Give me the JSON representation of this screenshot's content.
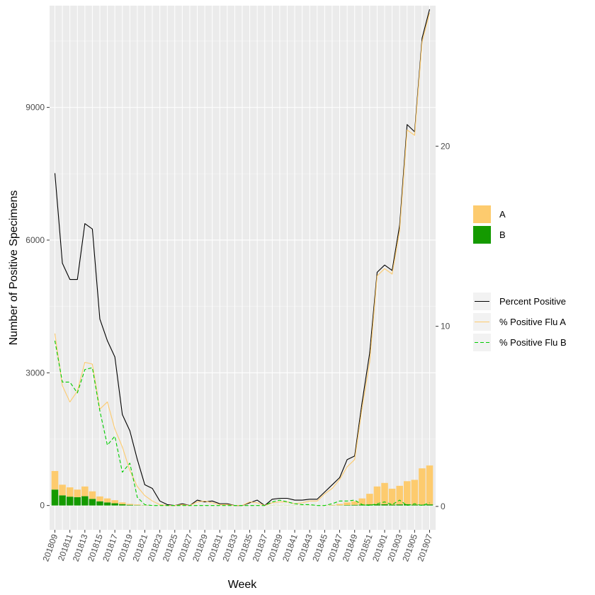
{
  "chart_data": {
    "type": "bar",
    "x_axis_title": "Week",
    "y_axis_title": "Number of Positive Specimens",
    "y_left_range": [
      -550,
      11300
    ],
    "y_left_ticks": [
      0,
      3000,
      6000,
      9000
    ],
    "y_right_range": [
      -1.3,
      27.8
    ],
    "y_right_ticks": [
      0,
      10,
      20
    ],
    "grid": true,
    "legend_position": "right",
    "categories": [
      "201809",
      "201810",
      "201811",
      "201812",
      "201813",
      "201814",
      "201815",
      "201816",
      "201817",
      "201818",
      "201819",
      "201820",
      "201821",
      "201822",
      "201823",
      "201824",
      "201825",
      "201826",
      "201827",
      "201828",
      "201829",
      "201830",
      "201831",
      "201832",
      "201833",
      "201834",
      "201835",
      "201836",
      "201837",
      "201838",
      "201839",
      "201840",
      "201841",
      "201842",
      "201843",
      "201844",
      "201845",
      "201846",
      "201847",
      "201848",
      "201849",
      "201850",
      "201851",
      "201852",
      "201901",
      "201902",
      "201903",
      "201904",
      "201905",
      "201906",
      "201907"
    ],
    "x_tick_labels": [
      "201809",
      "201811",
      "201813",
      "201815",
      "201817",
      "201819",
      "201821",
      "201823",
      "201825",
      "201827",
      "201829",
      "201831",
      "201833",
      "201835",
      "201837",
      "201839",
      "201841",
      "201843",
      "201845",
      "201847",
      "201849",
      "201851",
      "201901",
      "201903",
      "201905",
      "201907"
    ],
    "bar_series": [
      {
        "name": "A",
        "color": "#FDCB6E",
        "values": [
          420,
          240,
          210,
          170,
          220,
          170,
          110,
          90,
          70,
          40,
          20,
          15,
          5,
          3,
          2,
          2,
          2,
          2,
          2,
          2,
          2,
          2,
          2,
          2,
          2,
          2,
          2,
          2,
          2,
          2,
          2,
          2,
          2,
          2,
          2,
          2,
          5,
          10,
          30,
          60,
          80,
          140,
          240,
          400,
          480,
          360,
          420,
          520,
          560,
          820,
          880
        ]
      },
      {
        "name": "B",
        "color": "#149A00",
        "values": [
          360,
          230,
          200,
          190,
          210,
          150,
          95,
          70,
          50,
          30,
          15,
          8,
          5,
          2,
          2,
          2,
          2,
          2,
          2,
          2,
          2,
          2,
          2,
          2,
          2,
          2,
          2,
          2,
          2,
          2,
          2,
          2,
          2,
          2,
          2,
          2,
          2,
          3,
          5,
          10,
          15,
          20,
          25,
          30,
          30,
          20,
          25,
          30,
          20,
          20,
          25
        ]
      }
    ],
    "line_series": [
      {
        "name": "Percent Positive",
        "color": "#000000",
        "dash": "",
        "values": [
          18.5,
          13.5,
          12.6,
          12.6,
          15.7,
          15.4,
          10.4,
          9.2,
          8.3,
          5.1,
          4.2,
          2.6,
          1.2,
          1.0,
          0.3,
          0.1,
          0.05,
          0.15,
          0.05,
          0.35,
          0.25,
          0.3,
          0.15,
          0.15,
          0.05,
          0.05,
          0.2,
          0.35,
          0.05,
          0.4,
          0.45,
          0.45,
          0.35,
          0.35,
          0.4,
          0.4,
          0.8,
          1.2,
          1.6,
          2.6,
          2.8,
          5.8,
          8.5,
          13.0,
          13.4,
          13.1,
          15.6,
          21.2,
          20.8,
          26.0,
          27.6
        ]
      },
      {
        "name": "% Positive Flu A",
        "color": "#FDCB6E",
        "dash": "",
        "values": [
          9.6,
          6.7,
          5.8,
          6.4,
          8.0,
          7.9,
          5.4,
          5.8,
          4.3,
          3.3,
          2.0,
          1.1,
          0.6,
          0.3,
          0.1,
          0.05,
          0.05,
          0.1,
          0.05,
          0.25,
          0.3,
          0.2,
          0.1,
          0.1,
          0.05,
          0.05,
          0.25,
          0.2,
          0.05,
          0.2,
          0.25,
          0.25,
          0.15,
          0.2,
          0.3,
          0.3,
          0.7,
          1.0,
          1.5,
          2.2,
          2.6,
          5.5,
          8.0,
          12.8,
          13.2,
          12.9,
          15.3,
          20.9,
          20.6,
          25.8,
          27.4
        ]
      },
      {
        "name": "% Positive Flu B",
        "color": "#00CC00",
        "dash": "5,3",
        "values": [
          9.2,
          6.9,
          6.9,
          6.3,
          7.6,
          7.7,
          5.3,
          3.4,
          3.9,
          1.9,
          2.4,
          0.5,
          0.1,
          0.05,
          0.05,
          0.05,
          0.05,
          0.05,
          0.05,
          0.05,
          0.05,
          0.05,
          0.05,
          0.05,
          0.05,
          0.05,
          0.05,
          0.05,
          0.05,
          0.25,
          0.35,
          0.25,
          0.15,
          0.1,
          0.1,
          0.05,
          0.05,
          0.15,
          0.3,
          0.3,
          0.35,
          0.1,
          0.05,
          0.15,
          0.25,
          0.1,
          0.35,
          0.05,
          0.15,
          0.05,
          0.2
        ]
      }
    ],
    "fill_legend": [
      {
        "label": "A",
        "color": "#FDCB6E"
      },
      {
        "label": "B",
        "color": "#149A00"
      }
    ],
    "line_legend": [
      {
        "label": "Percent Positive",
        "color": "#000000",
        "dash": ""
      },
      {
        "label": "% Positive Flu A",
        "color": "#FDCB6E",
        "dash": ""
      },
      {
        "label": "% Positive Flu B",
        "color": "#00CC00",
        "dash": "5,3"
      }
    ]
  }
}
